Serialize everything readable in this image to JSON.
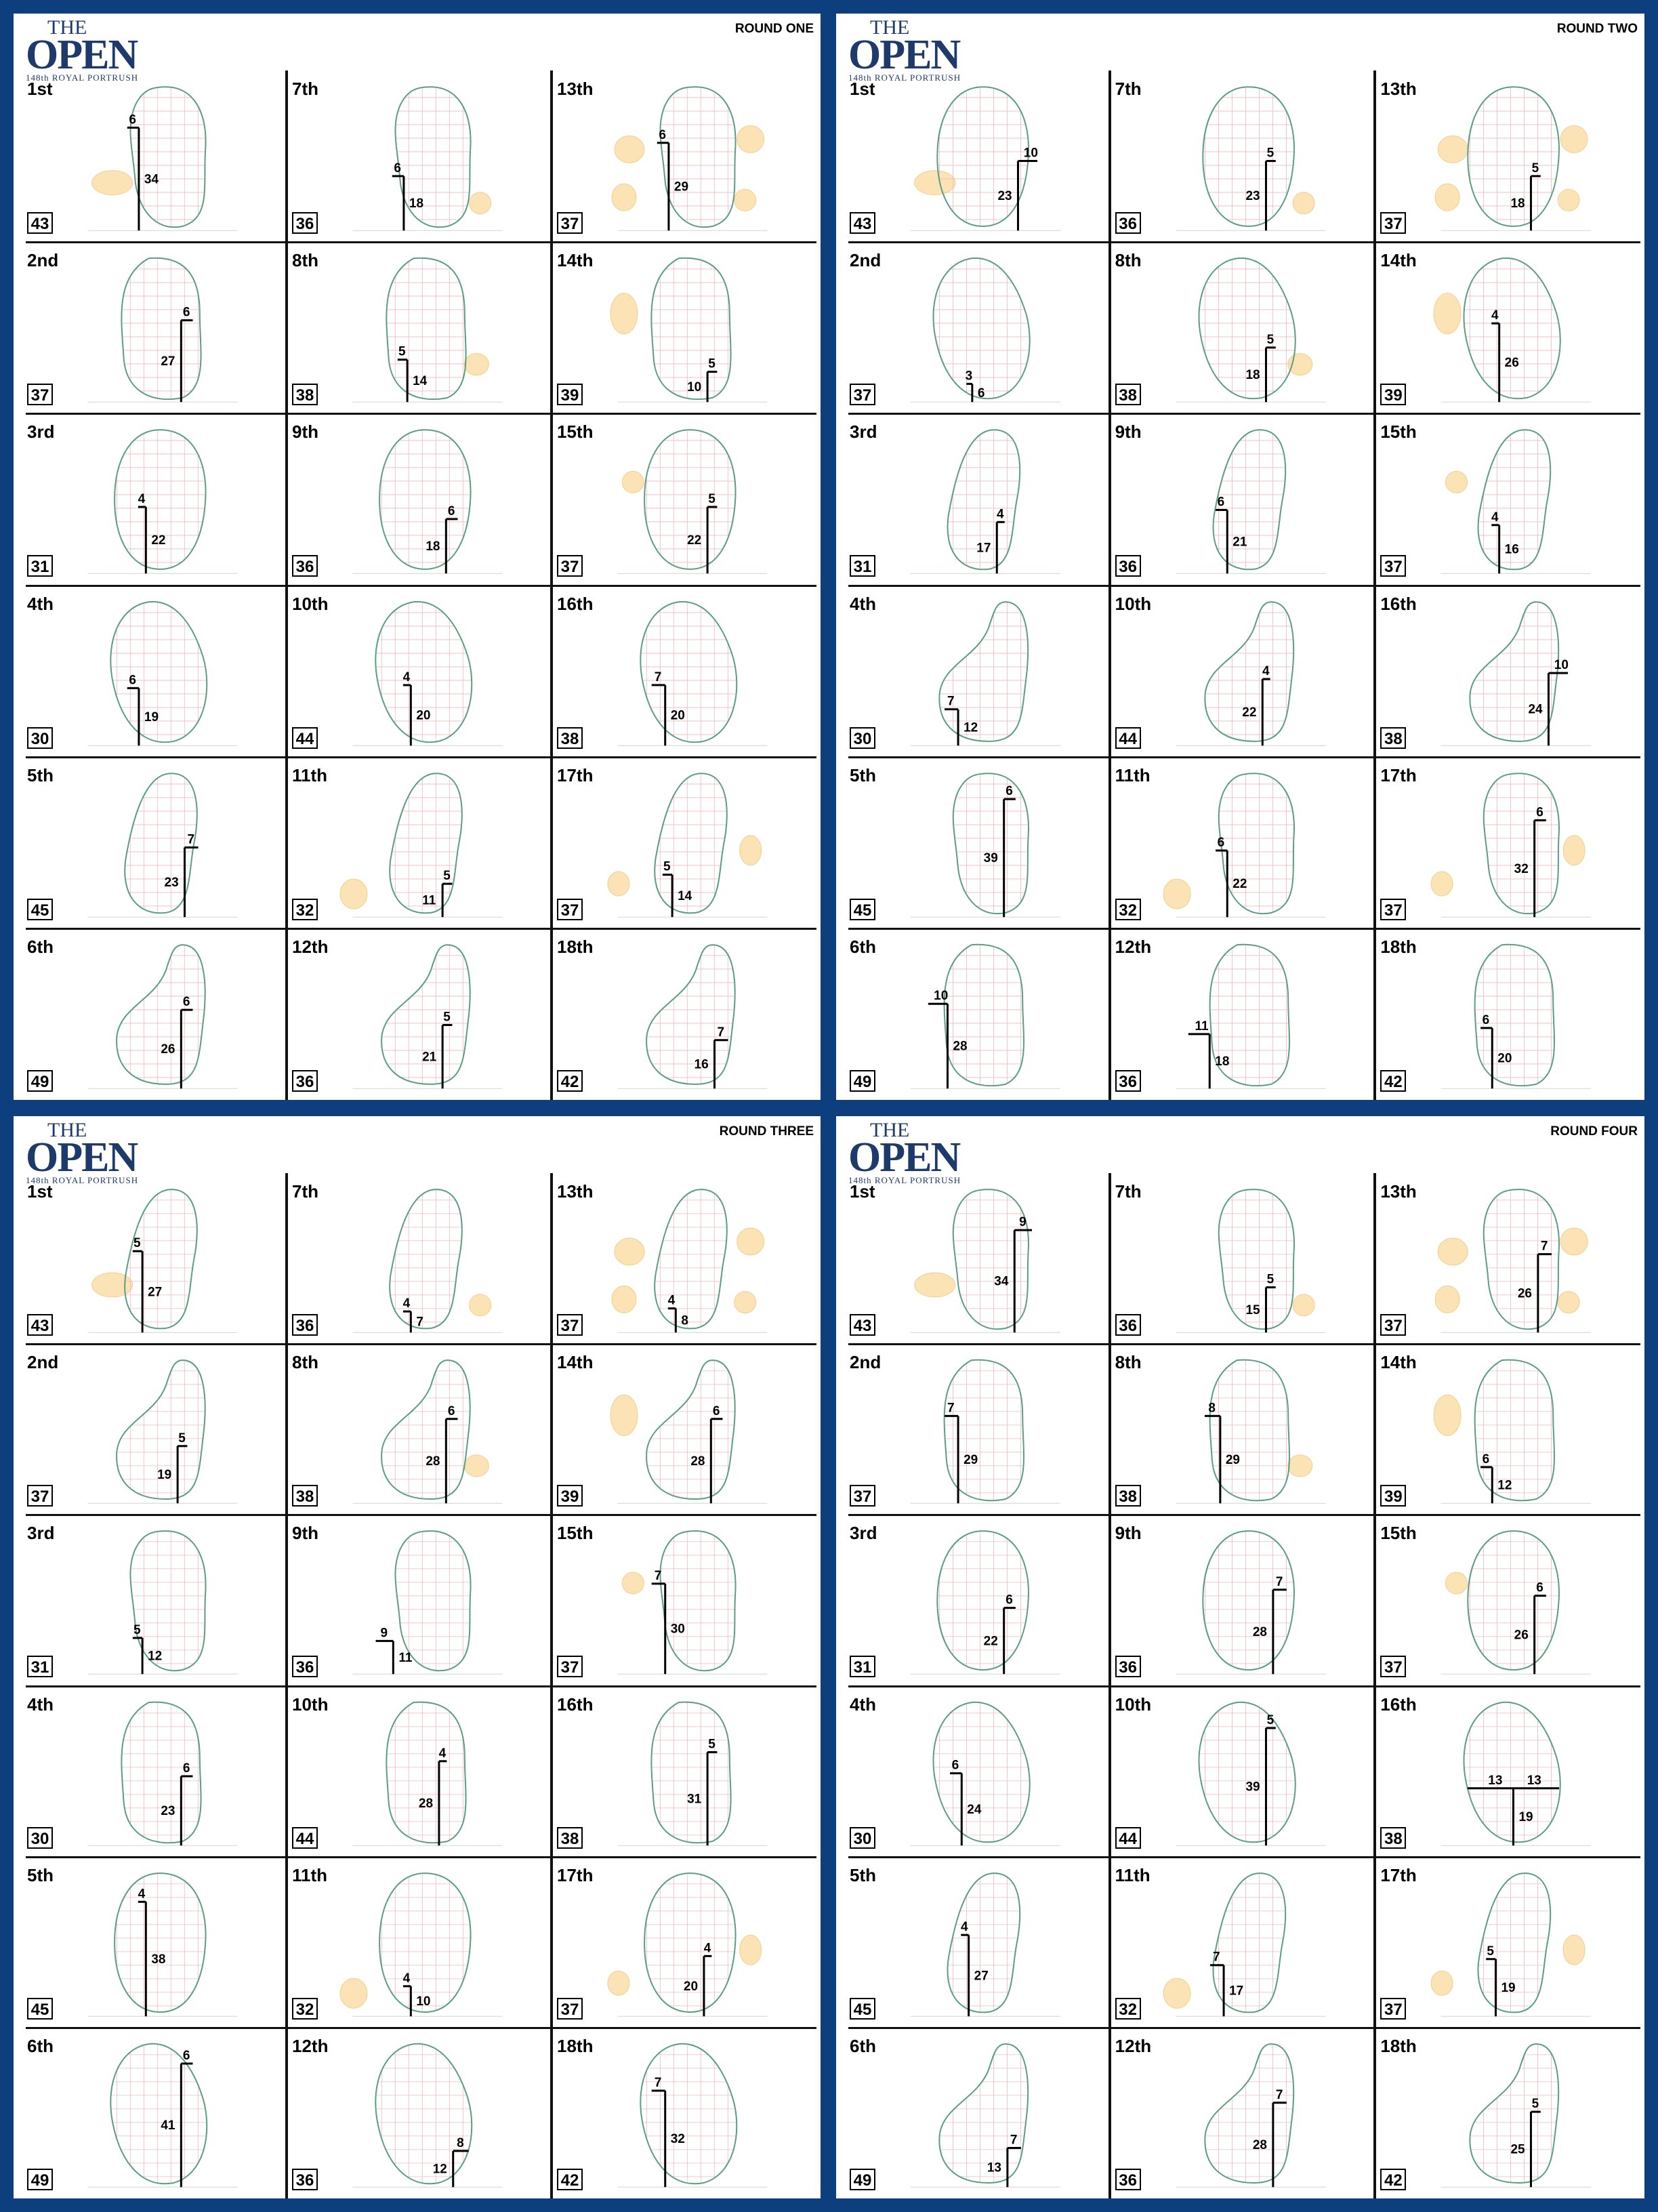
{
  "rounds": [
    {
      "title": "ROUND ONE",
      "holes": [
        {
          "hole": "1st",
          "length": 43,
          "lat": 6,
          "side": "L",
          "dep": 34
        },
        {
          "hole": "2nd",
          "length": 37,
          "lat": 6,
          "side": "R",
          "dep": 27
        },
        {
          "hole": "3rd",
          "length": 31,
          "lat": 4,
          "side": "L",
          "dep": 22
        },
        {
          "hole": "4th",
          "length": 30,
          "lat": 6,
          "side": "L",
          "dep": 19
        },
        {
          "hole": "5th",
          "length": 45,
          "lat": 7,
          "side": "R",
          "dep": 23
        },
        {
          "hole": "6th",
          "length": 49,
          "lat": 6,
          "side": "R",
          "dep": 26
        },
        {
          "hole": "7th",
          "length": 36,
          "lat": 6,
          "side": "L",
          "dep": 18
        },
        {
          "hole": "8th",
          "length": 38,
          "lat": 5,
          "side": "L",
          "dep": 14
        },
        {
          "hole": "9th",
          "length": 36,
          "lat": 6,
          "side": "R",
          "dep": 18
        },
        {
          "hole": "10th",
          "length": 44,
          "lat": 4,
          "side": "L",
          "dep": 20
        },
        {
          "hole": "11th",
          "length": 32,
          "lat": 5,
          "side": "R",
          "dep": 11
        },
        {
          "hole": "12th",
          "length": 36,
          "lat": 5,
          "side": "R",
          "dep": 21
        },
        {
          "hole": "13th",
          "length": 37,
          "lat": 6,
          "side": "L",
          "dep": 29
        },
        {
          "hole": "14th",
          "length": 39,
          "lat": 5,
          "side": "R",
          "dep": 10
        },
        {
          "hole": "15th",
          "length": 37,
          "lat": 5,
          "side": "R",
          "dep": 22
        },
        {
          "hole": "16th",
          "length": 38,
          "lat": 7,
          "side": "L",
          "dep": 20
        },
        {
          "hole": "17th",
          "length": 37,
          "lat": 5,
          "side": "L",
          "dep": 14
        },
        {
          "hole": "18th",
          "length": 42,
          "lat": 7,
          "side": "R",
          "dep": 16
        }
      ]
    },
    {
      "title": "ROUND TWO",
      "holes": [
        {
          "hole": "1st",
          "length": 43,
          "lat": 10,
          "side": "R",
          "dep": 23
        },
        {
          "hole": "2nd",
          "length": 37,
          "lat": 3,
          "side": "L",
          "dep": 6
        },
        {
          "hole": "3rd",
          "length": 31,
          "lat": 4,
          "side": "R",
          "dep": 17
        },
        {
          "hole": "4th",
          "length": 30,
          "lat": 7,
          "side": "L",
          "dep": 12
        },
        {
          "hole": "5th",
          "length": 45,
          "lat": 6,
          "side": "R",
          "dep": 39
        },
        {
          "hole": "6th",
          "length": 49,
          "lat": 10,
          "side": "L",
          "dep": 28
        },
        {
          "hole": "7th",
          "length": 36,
          "lat": 5,
          "side": "R",
          "dep": 23
        },
        {
          "hole": "8th",
          "length": 38,
          "lat": 5,
          "side": "R",
          "dep": 18
        },
        {
          "hole": "9th",
          "length": 36,
          "lat": 6,
          "side": "L",
          "dep": 21
        },
        {
          "hole": "10th",
          "length": 44,
          "lat": 4,
          "side": "R",
          "dep": 22
        },
        {
          "hole": "11th",
          "length": 32,
          "lat": 6,
          "side": "L",
          "dep": 22
        },
        {
          "hole": "12th",
          "length": 36,
          "lat": 11,
          "side": "L",
          "dep": 18
        },
        {
          "hole": "13th",
          "length": 37,
          "lat": 5,
          "side": "R",
          "dep": 18
        },
        {
          "hole": "14th",
          "length": 39,
          "lat": 4,
          "side": "L",
          "dep": 26
        },
        {
          "hole": "15th",
          "length": 37,
          "lat": 4,
          "side": "L",
          "dep": 16
        },
        {
          "hole": "16th",
          "length": 38,
          "lat": 10,
          "side": "R",
          "dep": 24
        },
        {
          "hole": "17th",
          "length": 37,
          "lat": 6,
          "side": "R",
          "dep": 32
        },
        {
          "hole": "18th",
          "length": 42,
          "lat": 6,
          "side": "L",
          "dep": 20
        }
      ]
    },
    {
      "title": "ROUND THREE",
      "holes": [
        {
          "hole": "1st",
          "length": 43,
          "lat": 5,
          "side": "L",
          "dep": 27
        },
        {
          "hole": "2nd",
          "length": 37,
          "lat": 5,
          "side": "R",
          "dep": 19
        },
        {
          "hole": "3rd",
          "length": 31,
          "lat": 5,
          "side": "L",
          "dep": 12
        },
        {
          "hole": "4th",
          "length": 30,
          "lat": 6,
          "side": "R",
          "dep": 23
        },
        {
          "hole": "5th",
          "length": 45,
          "lat": 4,
          "side": "L",
          "dep": 38
        },
        {
          "hole": "6th",
          "length": 49,
          "lat": 6,
          "side": "R",
          "dep": 41
        },
        {
          "hole": "7th",
          "length": 36,
          "lat": 4,
          "side": "L",
          "dep": 7
        },
        {
          "hole": "8th",
          "length": 38,
          "lat": 6,
          "side": "R",
          "dep": 28
        },
        {
          "hole": "9th",
          "length": 36,
          "lat": 9,
          "side": "L",
          "dep": 11
        },
        {
          "hole": "10th",
          "length": 44,
          "lat": 4,
          "side": "R",
          "dep": 28
        },
        {
          "hole": "11th",
          "length": 32,
          "lat": 4,
          "side": "L",
          "dep": 10
        },
        {
          "hole": "12th",
          "length": 36,
          "lat": 8,
          "side": "R",
          "dep": 12
        },
        {
          "hole": "13th",
          "length": 37,
          "lat": 4,
          "side": "L",
          "dep": 8
        },
        {
          "hole": "14th",
          "length": 39,
          "lat": 6,
          "side": "R",
          "dep": 28
        },
        {
          "hole": "15th",
          "length": 37,
          "lat": 7,
          "side": "L",
          "dep": 30
        },
        {
          "hole": "16th",
          "length": 38,
          "lat": 5,
          "side": "R",
          "dep": 31
        },
        {
          "hole": "17th",
          "length": 37,
          "lat": 4,
          "side": "R",
          "dep": 20
        },
        {
          "hole": "18th",
          "length": 42,
          "lat": 7,
          "side": "L",
          "dep": 32
        }
      ]
    },
    {
      "title": "ROUND FOUR",
      "holes": [
        {
          "hole": "1st",
          "length": 43,
          "lat": 9,
          "side": "R",
          "dep": 34
        },
        {
          "hole": "2nd",
          "length": 37,
          "lat": 7,
          "side": "L",
          "dep": 29
        },
        {
          "hole": "3rd",
          "length": 31,
          "lat": 6,
          "side": "R",
          "dep": 22
        },
        {
          "hole": "4th",
          "length": 30,
          "lat": 6,
          "side": "L",
          "dep": 24
        },
        {
          "hole": "5th",
          "length": 45,
          "lat": 4,
          "side": "L",
          "dep": 27
        },
        {
          "hole": "6th",
          "length": 49,
          "lat": 7,
          "side": "R",
          "dep": 13
        },
        {
          "hole": "7th",
          "length": 36,
          "lat": 5,
          "side": "R",
          "dep": 15
        },
        {
          "hole": "8th",
          "length": 38,
          "lat": 8,
          "side": "L",
          "dep": 29
        },
        {
          "hole": "9th",
          "length": 36,
          "lat": 7,
          "side": "R",
          "dep": 28
        },
        {
          "hole": "10th",
          "length": 44,
          "lat": 5,
          "side": "R",
          "dep": 39
        },
        {
          "hole": "11th",
          "length": 32,
          "lat": 7,
          "side": "L",
          "dep": 17
        },
        {
          "hole": "12th",
          "length": 36,
          "lat": 7,
          "side": "R",
          "dep": 28
        },
        {
          "hole": "13th",
          "length": 37,
          "lat": 7,
          "side": "R",
          "dep": 26
        },
        {
          "hole": "14th",
          "length": 39,
          "lat": 6,
          "side": "L",
          "dep": 12
        },
        {
          "hole": "15th",
          "length": 37,
          "lat": 6,
          "side": "R",
          "dep": 26
        },
        {
          "hole": "16th",
          "length": 38,
          "lat": 13,
          "side": "B",
          "dep": 19
        },
        {
          "hole": "17th",
          "length": 37,
          "lat": 5,
          "side": "L",
          "dep": 19
        },
        {
          "hole": "18th",
          "length": 42,
          "lat": 5,
          "side": "R",
          "dep": 25
        }
      ]
    }
  ],
  "logo": {
    "the": "THE",
    "open": "OPEN",
    "sub": "148th ROYAL PORTRUSH"
  },
  "colors": {
    "background": "#0d3f7f",
    "green_outline": "#5a9e84",
    "grid": "#f2b8bd",
    "bunker": "#fbe3b5",
    "logo": "#1d3a6b"
  }
}
